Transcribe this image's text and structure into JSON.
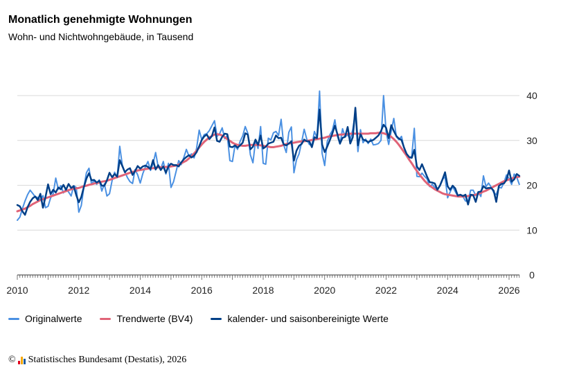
{
  "title": "Monatlich genehmigte Wohnungen",
  "subtitle": "Wohn- und Nichtwohngebäude, in Tausend",
  "footer": {
    "copyright_symbol": "©",
    "text": "Statistisches Bundesamt (Destatis), 2026",
    "logo_colors": [
      "#e2001a",
      "#f6a800",
      "#1b5a9e"
    ]
  },
  "legend": [
    {
      "label": "Originalwerte",
      "color": "#4a90e2"
    },
    {
      "label": "Trendwerte (BV4)",
      "color": "#e06377"
    },
    {
      "label": "kalender- und saisonbereinigte Werte",
      "color": "#003f87"
    }
  ],
  "chart_data": {
    "type": "line",
    "x_start": "2010-01",
    "x_end": "2026-06",
    "x_ticks": [
      "2010",
      "2012",
      "2014",
      "2016",
      "2018",
      "2020",
      "2022",
      "2024",
      "2026"
    ],
    "y_ticks": [
      "0",
      "10",
      "20",
      "30",
      "40"
    ],
    "ylim": [
      0,
      42
    ],
    "grid": true,
    "y_axis_side": "right",
    "legend_position": "bottom",
    "series": [
      {
        "name": "Originalwerte",
        "color": "#4a90e2",
        "width": 2,
        "values": [
          12.2,
          12.9,
          14.8,
          16.5,
          17.9,
          18.9,
          18.2,
          17.4,
          17.3,
          16.7,
          17.7,
          15.0,
          15.3,
          17.2,
          18.1,
          21.6,
          19.1,
          19.9,
          18.3,
          19.2,
          18.5,
          17.6,
          19.9,
          19.5,
          14.0,
          15.5,
          19.6,
          22.8,
          23.8,
          20.2,
          21.1,
          20.2,
          21.2,
          18.7,
          20.3,
          17.6,
          18.1,
          21.0,
          22.9,
          21.7,
          28.7,
          24.5,
          23.0,
          21.7,
          20.8,
          20.4,
          23.5,
          22.3,
          20.5,
          22.6,
          24.1,
          25.3,
          23.3,
          24.8,
          27.3,
          24.1,
          23.7,
          25.3,
          22.5,
          24.9,
          19.5,
          20.8,
          23.1,
          25.5,
          24.6,
          26.2,
          28.0,
          26.5,
          27.0,
          26.1,
          28.3,
          32.3,
          30.2,
          31.3,
          31.5,
          32.2,
          33.3,
          34.4,
          30.9,
          31.5,
          32.8,
          30.4,
          31.1,
          25.5,
          25.3,
          28.9,
          28.0,
          29.8,
          31.0,
          33.1,
          31.6,
          26.8,
          25.0,
          29.9,
          28.2,
          33.1,
          24.9,
          24.7,
          30.5,
          30.1,
          31.7,
          32.0,
          31.1,
          34.7,
          29.0,
          27.3,
          31.8,
          33.0,
          22.8,
          25.7,
          27.0,
          29.6,
          32.5,
          30.3,
          29.1,
          28.9,
          32.0,
          30.6,
          41.0,
          27.1,
          24.4,
          29.7,
          31.2,
          32.2,
          34.6,
          30.9,
          29.2,
          32.6,
          30.8,
          31.3,
          30.2,
          32.5,
          36.2,
          27.5,
          32.4,
          29.5,
          30.3,
          29.3,
          30.3,
          29.0,
          29.1,
          29.3,
          30.0,
          40.0,
          31.9,
          29.1,
          32.1,
          34.9,
          30.8,
          30.2,
          30.9,
          28.3,
          26.8,
          25.9,
          26.5,
          32.7,
          22.0,
          21.9,
          22.7,
          22.0,
          21.4,
          19.7,
          20.2,
          19.5,
          19.0,
          20.0,
          21.4,
          21.8,
          17.2,
          18.5,
          19.7,
          18.6,
          17.6,
          17.7,
          17.5,
          16.5,
          16.4,
          18.9,
          18.9,
          17.7,
          18.5,
          17.5,
          22.1,
          19.7,
          20.5,
          19.6,
          18.4,
          17.9,
          19.5,
          19.4,
          20.6,
          22.3,
          21.5,
          20.2,
          22.5,
          21.8,
          20.2,
          22.0,
          20.8,
          21.1,
          21.3,
          21.4,
          20.9,
          21.2
        ]
      },
      {
        "name": "Trendwerte (BV4)",
        "color": "#e06377",
        "width": 3,
        "values": [
          14.2,
          14.4,
          14.6,
          14.8,
          15.1,
          15.4,
          15.8,
          16.1,
          16.4,
          16.7,
          16.9,
          17.1,
          17.3,
          17.5,
          17.7,
          17.9,
          18.1,
          18.3,
          18.5,
          18.7,
          18.9,
          19.1,
          19.2,
          19.3,
          19.4,
          19.6,
          19.8,
          19.9,
          20.1,
          20.2,
          20.4,
          20.5,
          20.6,
          20.8,
          20.9,
          21.0,
          21.2,
          21.4,
          21.6,
          21.8,
          22.0,
          22.2,
          22.4,
          22.6,
          22.8,
          23.0,
          23.1,
          23.3,
          23.4,
          23.5,
          23.6,
          23.7,
          23.8,
          23.8,
          23.9,
          24.0,
          24.0,
          24.1,
          24.1,
          24.1,
          24.2,
          24.3,
          24.4,
          24.6,
          24.9,
          25.2,
          25.5,
          26.0,
          26.5,
          27.1,
          27.7,
          28.4,
          29.1,
          29.7,
          30.2,
          30.7,
          31.0,
          31.3,
          31.4,
          31.3,
          31.1,
          30.7,
          30.3,
          29.9,
          29.5,
          29.2,
          29.0,
          28.9,
          28.8,
          28.8,
          28.9,
          29.0,
          29.0,
          29.0,
          29.0,
          28.9,
          28.8,
          28.7,
          28.6,
          28.5,
          28.5,
          28.6,
          28.7,
          28.8,
          29.0,
          29.2,
          29.3,
          29.4,
          29.5,
          29.6,
          29.7,
          29.8,
          29.8,
          29.9,
          30.0,
          30.1,
          30.2,
          30.3,
          30.4,
          30.5,
          30.6,
          30.8,
          30.9,
          31.0,
          31.1,
          31.2,
          31.3,
          31.3,
          31.4,
          31.4,
          31.5,
          31.5,
          31.5,
          31.5,
          31.5,
          31.5,
          31.5,
          31.5,
          31.6,
          31.6,
          31.6,
          31.7,
          31.7,
          31.6,
          31.4,
          31.2,
          30.8,
          30.3,
          29.7,
          29.0,
          28.2,
          27.4,
          26.6,
          25.7,
          24.9,
          24.0,
          23.2,
          22.4,
          21.7,
          21.0,
          20.4,
          19.9,
          19.5,
          19.1,
          18.8,
          18.5,
          18.2,
          18.0,
          17.9,
          17.8,
          17.7,
          17.6,
          17.5,
          17.5,
          17.5,
          17.5,
          17.6,
          17.7,
          17.8,
          17.9,
          18.1,
          18.3,
          18.6,
          18.8,
          19.1,
          19.4,
          19.7,
          20.0,
          20.3,
          20.6,
          20.9,
          21.1,
          21.3,
          21.5,
          21.7,
          21.8,
          21.9,
          22.0,
          22.1,
          22.2,
          22.3,
          22.4,
          22.4,
          22.5
        ]
      },
      {
        "name": "kalender- und saisonbereinigte Werte",
        "color": "#003f87",
        "width": 2.5,
        "values": [
          15.6,
          15.3,
          14.2,
          13.4,
          15.1,
          16.3,
          17.1,
          17.5,
          16.7,
          18.1,
          15.0,
          17.4,
          20.2,
          18.0,
          19.0,
          18.4,
          19.5,
          19.1,
          20.1,
          19.0,
          20.3,
          19.4,
          19.8,
          17.8,
          16.2,
          17.4,
          19.6,
          21.5,
          22.7,
          21.1,
          21.2,
          20.6,
          21.0,
          19.9,
          19.9,
          21.1,
          22.8,
          21.8,
          22.5,
          21.9,
          25.6,
          24.3,
          22.9,
          23.5,
          23.8,
          22.3,
          23.2,
          24.3,
          23.7,
          24.2,
          24.4,
          24.1,
          23.6,
          25.6,
          23.5,
          24.5,
          23.4,
          24.2,
          22.8,
          24.2,
          24.8,
          24.5,
          24.5,
          24.2,
          25.1,
          25.8,
          26.3,
          26.7,
          26.2,
          26.6,
          27.4,
          28.7,
          30.1,
          30.9,
          31.3,
          30.3,
          31.0,
          32.9,
          29.9,
          29.7,
          30.8,
          31.5,
          31.4,
          28.6,
          28.5,
          28.9,
          28.4,
          28.9,
          29.5,
          31.6,
          31.3,
          28.0,
          28.6,
          30.2,
          29.0,
          31.1,
          28.2,
          28.6,
          29.3,
          29.5,
          29.7,
          31.1,
          30.5,
          30.6,
          29.1,
          28.9,
          29.3,
          29.8,
          25.5,
          27.7,
          28.8,
          29.2,
          30.2,
          29.8,
          29.8,
          28.5,
          30.7,
          30.5,
          36.9,
          29.1,
          27.4,
          28.6,
          30.0,
          31.5,
          33.3,
          31.4,
          29.3,
          30.6,
          30.8,
          33.0,
          29.3,
          30.7,
          37.3,
          28.9,
          31.4,
          30.2,
          30.0,
          29.6,
          29.9,
          30.1,
          30.6,
          31.1,
          32.1,
          33.5,
          32.8,
          30.5,
          33.4,
          32.1,
          31.0,
          30.4,
          30.1,
          28.4,
          27.0,
          26.3,
          26.1,
          27.9,
          24.2,
          23.4,
          24.7,
          23.3,
          21.9,
          20.7,
          20.6,
          20.4,
          19.0,
          19.9,
          21.3,
          22.9,
          19.8,
          19.0,
          19.9,
          19.3,
          17.7,
          17.9,
          17.6,
          17.9,
          15.7,
          17.9,
          17.8,
          16.3,
          18.5,
          18.6,
          19.8,
          19.3,
          19.4,
          19.4,
          18.8,
          16.3,
          19.8,
          20.3,
          20.4,
          21.2,
          23.3,
          20.8,
          21.3,
          22.5,
          22.1,
          24.2,
          20.9,
          21.3,
          21.0,
          21.5,
          21.2,
          20.9
        ]
      }
    ]
  }
}
